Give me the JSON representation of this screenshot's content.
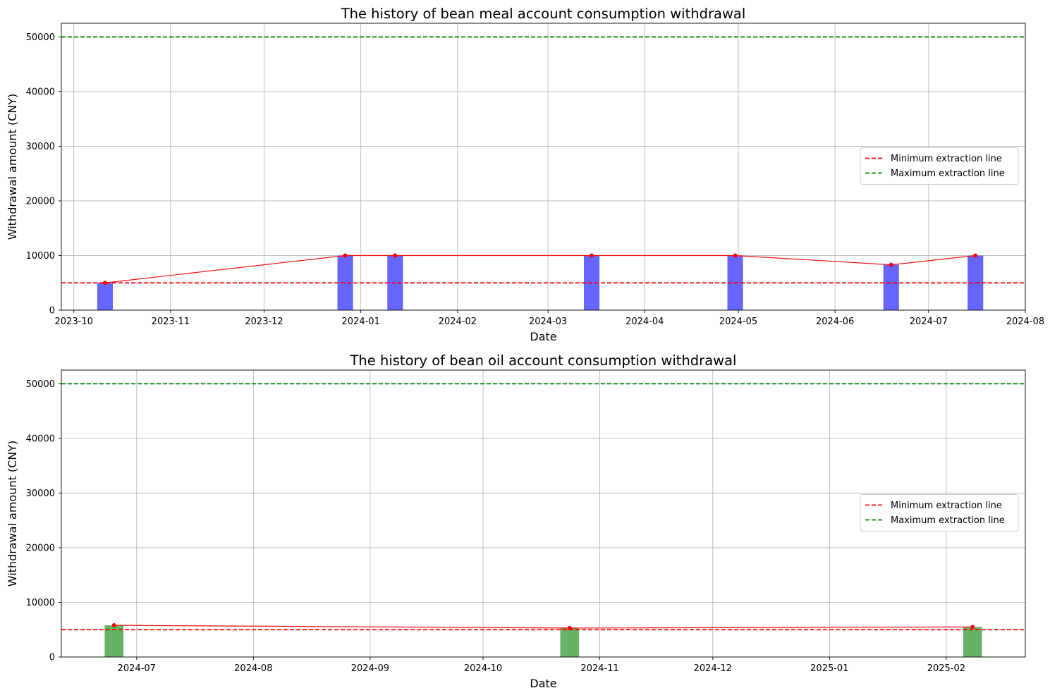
{
  "chart_data": [
    {
      "type": "bar",
      "title": "The history of bean meal account consumption withdrawal",
      "xlabel": "Date",
      "ylabel": "Withdrawal amount (CNY)",
      "x_axis_type": "date",
      "xlim": [
        "2023-09-27",
        "2024-08-01"
      ],
      "ylim": [
        0,
        52500
      ],
      "xticks": [
        "2023-10-01",
        "2023-11-01",
        "2023-12-01",
        "2024-01-01",
        "2024-02-01",
        "2024-03-01",
        "2024-04-01",
        "2024-05-01",
        "2024-06-01",
        "2024-07-01",
        "2024-08-01"
      ],
      "xtick_labels": [
        "2023-10",
        "2023-11",
        "2023-12",
        "2024-01",
        "2024-02",
        "2024-03",
        "2024-04",
        "2024-05",
        "2024-06",
        "2024-07",
        "2024-08"
      ],
      "yticks": [
        0,
        10000,
        20000,
        30000,
        40000,
        50000
      ],
      "ytick_labels": [
        "0",
        "10000",
        "20000",
        "30000",
        "40000",
        "50000"
      ],
      "grid": true,
      "bar_color": "#6666ff",
      "bar_width_days": 5,
      "line_color": "#ee1111",
      "marker_color": "#ff0000",
      "points": [
        {
          "date": "2023-10-11",
          "value": 5000
        },
        {
          "date": "2023-12-27",
          "value": 10000
        },
        {
          "date": "2024-01-12",
          "value": 10000
        },
        {
          "date": "2024-03-15",
          "value": 10000
        },
        {
          "date": "2024-04-30",
          "value": 10000
        },
        {
          "date": "2024-06-19",
          "value": 8300
        },
        {
          "date": "2024-07-16",
          "value": 10000
        }
      ],
      "reference_lines": [
        {
          "name": "Minimum extraction line",
          "value": 5000,
          "color": "#ff0000",
          "style": "dashed"
        },
        {
          "name": "Maximum extraction line",
          "value": 50000,
          "color": "#008000",
          "style": "dashed"
        }
      ],
      "legend_placement": "center-right"
    },
    {
      "type": "bar",
      "title": "The history of bean oil account consumption withdrawal",
      "xlabel": "Date",
      "ylabel": "Withdrawal amount (CNY)",
      "x_axis_type": "date",
      "xlim": [
        "2024-06-11",
        "2025-02-22"
      ],
      "ylim": [
        0,
        52500
      ],
      "xticks": [
        "2024-07-01",
        "2024-08-01",
        "2024-09-01",
        "2024-10-01",
        "2024-11-01",
        "2024-12-01",
        "2025-01-01",
        "2025-02-01"
      ],
      "xtick_labels": [
        "2024-07",
        "2024-08",
        "2024-09",
        "2024-10",
        "2024-11",
        "2024-12",
        "2025-01",
        "2025-02"
      ],
      "yticks": [
        0,
        10000,
        20000,
        30000,
        40000,
        50000
      ],
      "ytick_labels": [
        "0",
        "10000",
        "20000",
        "30000",
        "40000",
        "50000"
      ],
      "grid": true,
      "bar_color": "#66b266",
      "bar_width_days": 5,
      "line_color": "#ee1111",
      "marker_color": "#ff0000",
      "points": [
        {
          "date": "2024-06-25",
          "value": 5800
        },
        {
          "date": "2024-10-24",
          "value": 5300
        },
        {
          "date": "2025-02-08",
          "value": 5500
        }
      ],
      "reference_lines": [
        {
          "name": "Minimum extraction line",
          "value": 5000,
          "color": "#ff0000",
          "style": "dashed"
        },
        {
          "name": "Maximum extraction line",
          "value": 50000,
          "color": "#008000",
          "style": "dashed"
        }
      ],
      "legend_placement": "center-right"
    }
  ]
}
